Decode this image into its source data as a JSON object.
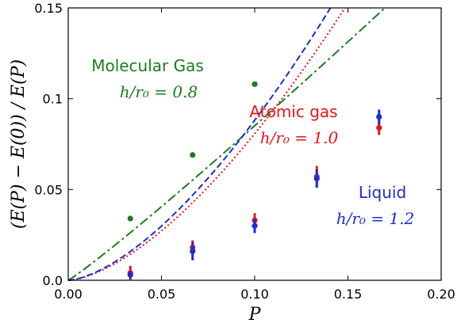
{
  "chart_data": {
    "type": "scatter",
    "xlabel": "P",
    "ylabel": "(E(P) − E(0)) / E(P)",
    "xlim": [
      0,
      0.2
    ],
    "ylim": [
      0,
      0.15
    ],
    "x_ticks": [
      "0.00",
      "0.05",
      "0.10",
      "0.15",
      "0.20"
    ],
    "y_ticks": [
      "0.0",
      "0.05",
      "0.1",
      "0.15"
    ],
    "x_tick_values": [
      0,
      0.05,
      0.1,
      0.15,
      0.2
    ],
    "y_tick_values": [
      0,
      0.05,
      0.1,
      0.15
    ],
    "grid": false,
    "series": [
      {
        "name": "Molecular Gas",
        "param": "h/r₀ = 0.8",
        "color": "#1a7f1a",
        "line_style": "dash-dot",
        "x": [
          0.0333,
          0.0667,
          0.1
        ],
        "y": [
          0.034,
          0.069,
          0.108
        ],
        "err": [
          0.001,
          0.001,
          0.001
        ],
        "fit_slope": 1.0,
        "fit_exponent": 1.07
      },
      {
        "name": "Atomic gas",
        "param": "h/r₀ = 1.0",
        "color": "#e8141a",
        "line_style": "dotted",
        "x": [
          0.0333,
          0.0667,
          0.1,
          0.1333,
          0.1667
        ],
        "y": [
          0.004,
          0.018,
          0.033,
          0.057,
          0.084
        ],
        "err": [
          0.004,
          0.004,
          0.004,
          0.006,
          0.004
        ],
        "fit_slope": 3.0,
        "fit_exponent": 1.57
      },
      {
        "name": "Liquid",
        "param": "h/r₀ = 1.2",
        "color": "#1f2ad6",
        "line_style": "dashed",
        "x": [
          0.0333,
          0.0667,
          0.1,
          0.1333,
          0.1667
        ],
        "y": [
          0.003,
          0.016,
          0.03,
          0.056,
          0.09
        ],
        "err": [
          0.002,
          0.005,
          0.004,
          0.005,
          0.004
        ],
        "fit_slope": 3.2,
        "fit_exponent": 1.56
      }
    ]
  }
}
